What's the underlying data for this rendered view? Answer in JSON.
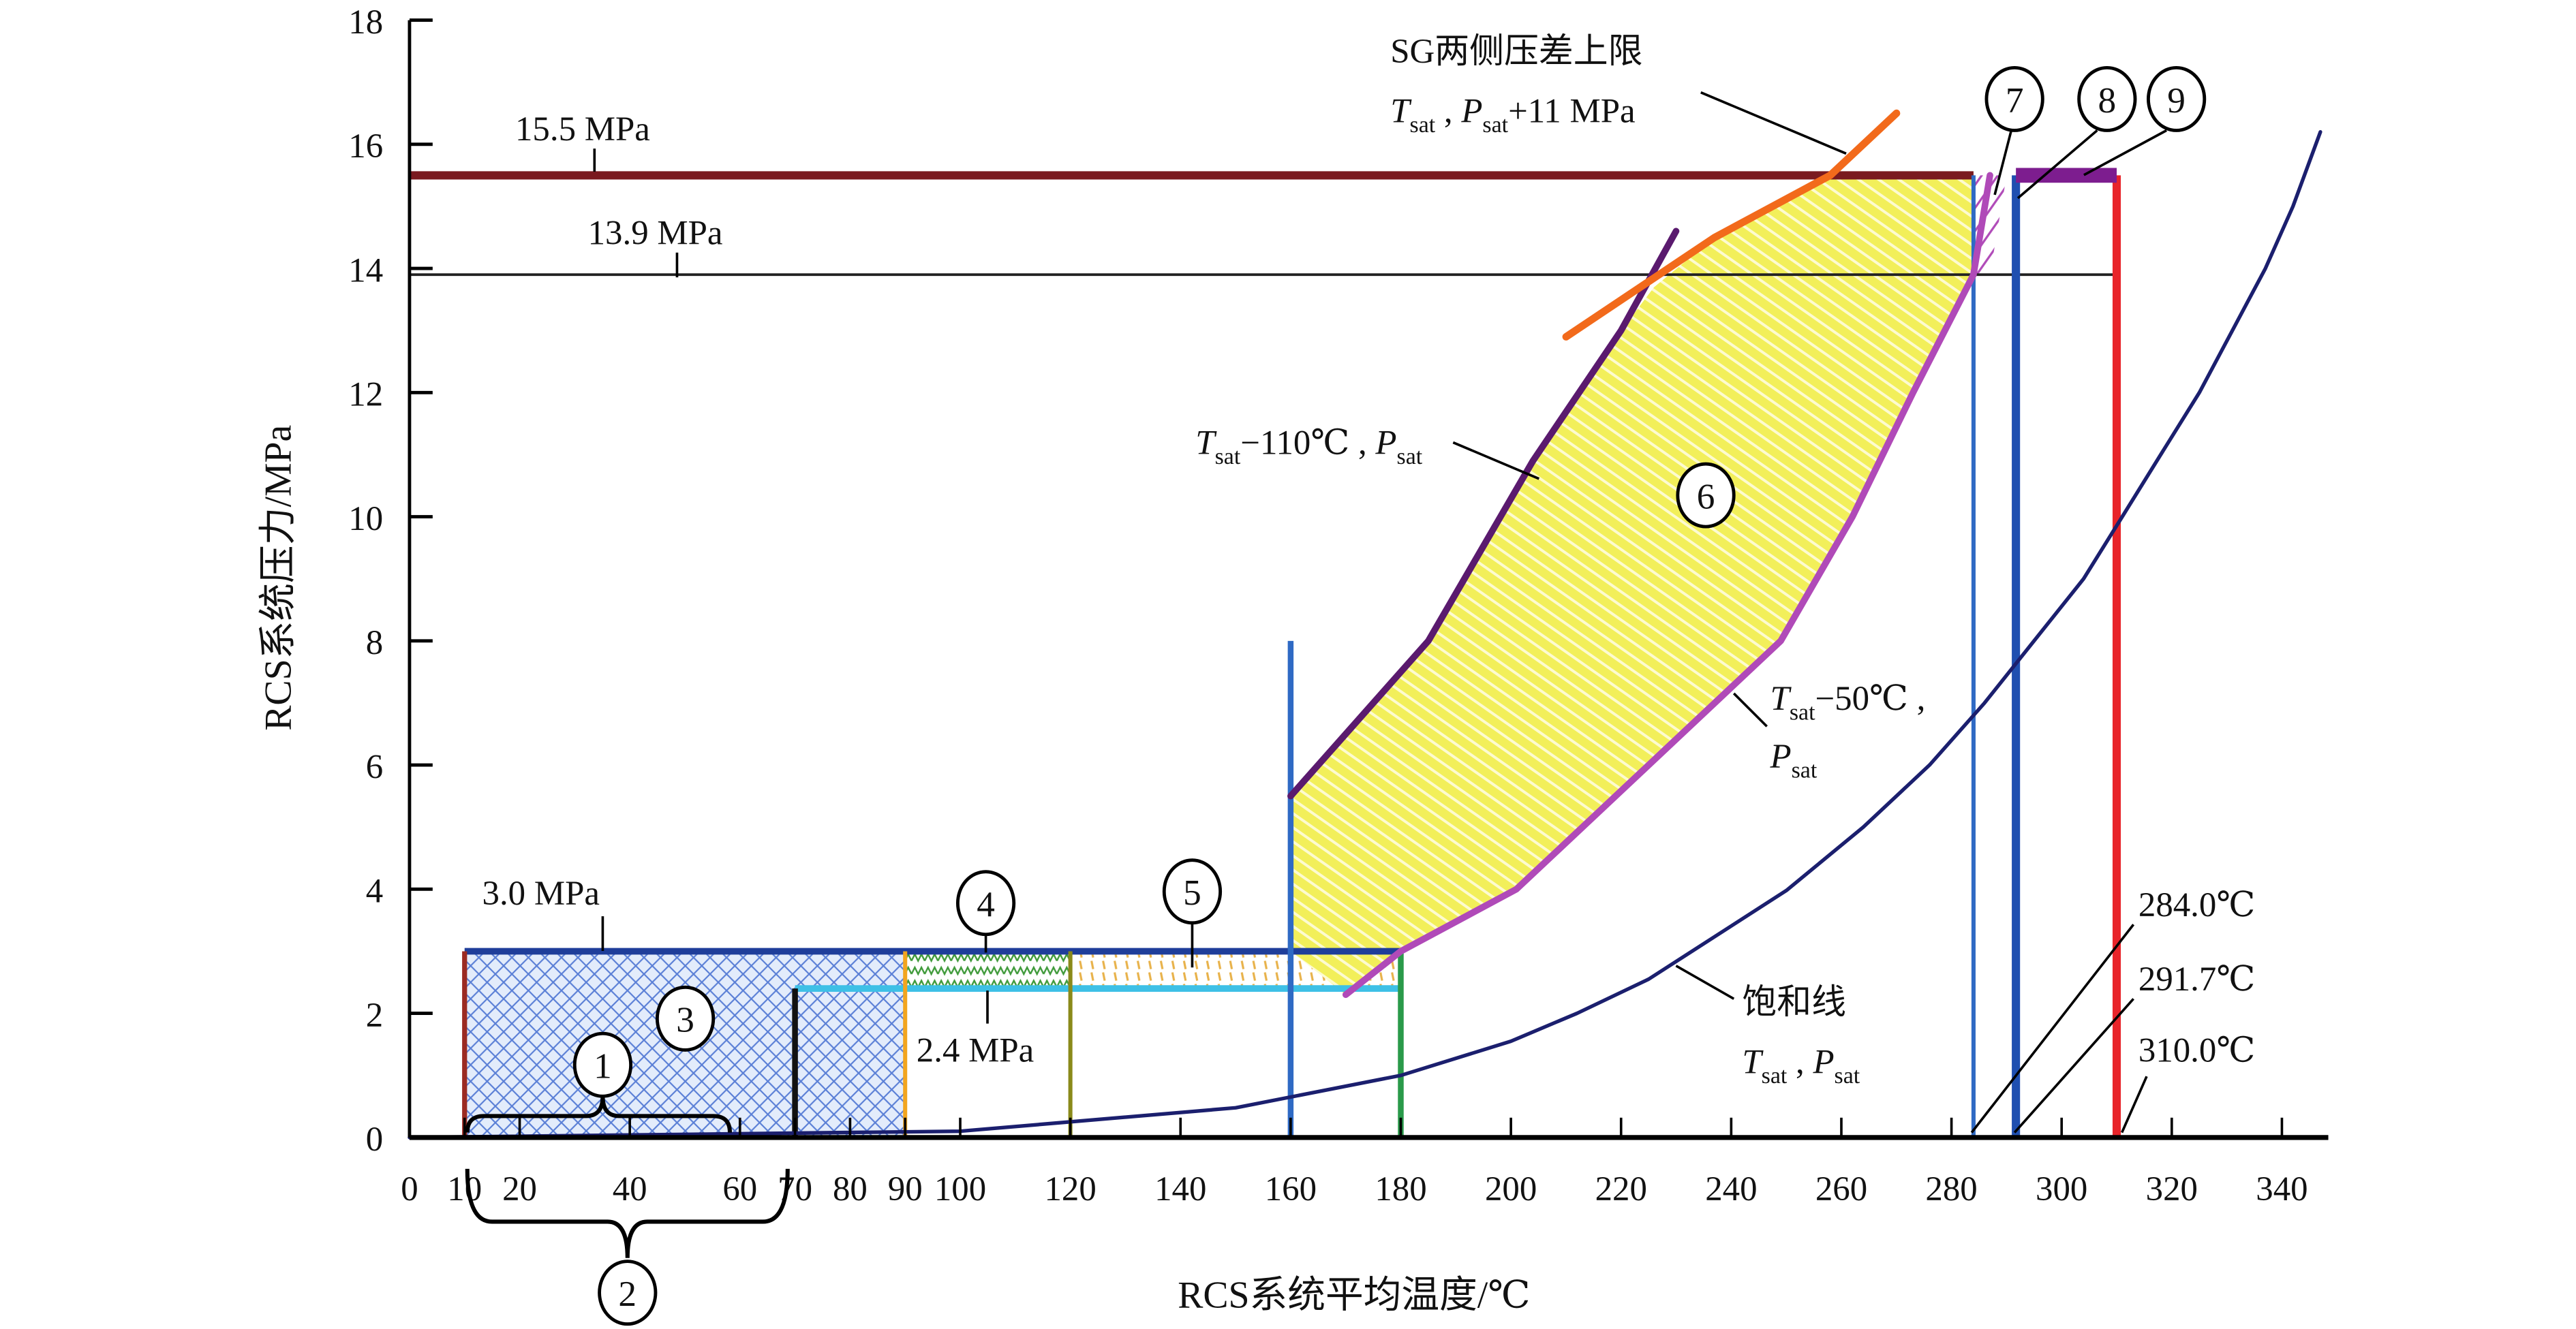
{
  "chart_data": {
    "type": "line",
    "title": "",
    "xlabel": "RCS系统平均温度/℃",
    "ylabel": "RCS系统压力/MPa",
    "xlim": [
      0,
      345
    ],
    "ylim": [
      0,
      18
    ],
    "x_ticks": [
      0,
      10,
      20,
      40,
      60,
      70,
      80,
      90,
      100,
      120,
      140,
      160,
      180,
      200,
      220,
      240,
      260,
      280,
      300,
      320,
      340
    ],
    "y_ticks": [
      0,
      2,
      4,
      6,
      8,
      10,
      12,
      14,
      16,
      18
    ],
    "grid": false,
    "series": [
      {
        "name": "饱和线 Tsat, Psat",
        "color": "#1b1f6e",
        "x": [
          0,
          100,
          150,
          180,
          200,
          212,
          225,
          250,
          264,
          276,
          286,
          295,
          304,
          311,
          318,
          325,
          331,
          337,
          342,
          347
        ],
        "y": [
          0,
          0.1,
          0.48,
          1.0,
          1.55,
          2.0,
          2.55,
          3.98,
          5.0,
          6.0,
          7.0,
          8.0,
          9.0,
          10.0,
          11.0,
          12.0,
          13.0,
          14.0,
          15.0,
          16.2
        ]
      },
      {
        "name": "Tsat−50℃, Psat",
        "color": "#b04ab8",
        "x": [
          170,
          180,
          201,
          225,
          249,
          262,
          273,
          284,
          287
        ],
        "y": [
          2.3,
          3.0,
          4.0,
          6.0,
          8.0,
          10.0,
          12.0,
          13.9,
          15.5
        ]
      },
      {
        "name": "Tsat−110℃, Psat",
        "color": "#5a1a6e",
        "x": [
          160,
          185,
          204,
          220,
          230
        ],
        "y": [
          5.5,
          8.0,
          10.9,
          13.0,
          14.6
        ]
      },
      {
        "name": "SG两侧压差上限 Tsat, Psat+11 MPa",
        "color": "#f26a1b",
        "x": [
          210,
          237,
          258,
          270
        ],
        "y": [
          12.9,
          14.5,
          15.5,
          16.5
        ]
      }
    ],
    "limits": [
      {
        "name": "15.5 MPa",
        "value": 15.5,
        "from": 0,
        "to": 284,
        "color": "#7a1a1f"
      },
      {
        "name": "13.9 MPa",
        "value": 13.9,
        "from": 0,
        "to": 310,
        "color": "#222222"
      },
      {
        "name": "3.0 MPa",
        "value": 3.0,
        "from": 10,
        "to": 180,
        "color": "#1f3e9a"
      },
      {
        "name": "2.4 MPa",
        "value": 2.4,
        "from": 70,
        "to": 180,
        "color": "#3ec0e6"
      },
      {
        "name": "284.0℃",
        "value": 284.0,
        "from": 0,
        "to": 15.5,
        "color": "#2f6ac4"
      },
      {
        "name": "291.7℃",
        "value": 291.7,
        "from": 0,
        "to": 15.5,
        "color": "#1f4fb0"
      },
      {
        "name": "310.0℃",
        "value": 310.0,
        "from": 0,
        "to": 15.5,
        "color": "#e8242a"
      }
    ],
    "labels": {
      "p155": "15.5 MPa",
      "p139": "13.9 MPa",
      "p30": "3.0 MPa",
      "p24": "2.4 MPa",
      "t284": "284.0℃",
      "t2917": "291.7℃",
      "t310": "310.0℃",
      "sg_title": "SG两侧压差上限",
      "sg_formula": [
        [
          "T",
          "i"
        ],
        [
          "sat",
          "sub"
        ],
        [
          " , ",
          ""
        ],
        [
          "P",
          "i"
        ],
        [
          "sat",
          "sub"
        ],
        [
          "+11 MPa",
          ""
        ]
      ],
      "tsat110": [
        [
          "T",
          "i"
        ],
        [
          "sat",
          "sub"
        ],
        [
          "−110℃ , ",
          ""
        ],
        [
          "P",
          "i"
        ],
        [
          "sat",
          "sub"
        ]
      ],
      "tsat50_a": [
        [
          "T",
          "i"
        ],
        [
          "sat",
          "sub"
        ],
        [
          "−50℃ ,",
          ""
        ]
      ],
      "tsat50_b": [
        [
          "P",
          "i"
        ],
        [
          "sat",
          "sub"
        ]
      ],
      "satline_title": "饱和线",
      "satline_formula": [
        [
          "T",
          "i"
        ],
        [
          "sat",
          "sub"
        ],
        [
          " ,  ",
          ""
        ],
        [
          "P",
          "i"
        ],
        [
          "sat",
          "sub"
        ]
      ]
    },
    "zones": [
      "1",
      "2",
      "3",
      "4",
      "5",
      "6",
      "7",
      "8",
      "9"
    ]
  }
}
